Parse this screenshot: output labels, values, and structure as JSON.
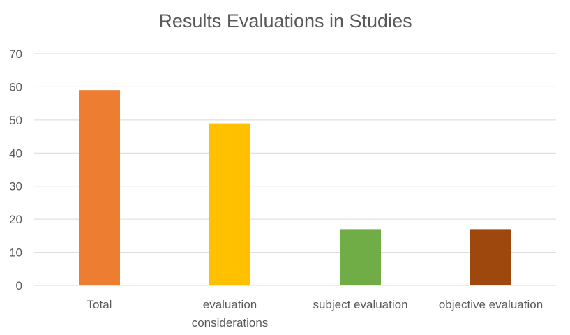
{
  "chart_data": {
    "type": "bar",
    "title": "Results Evaluations in Studies",
    "xlabel": "",
    "ylabel": "",
    "ylim": [
      0,
      70
    ],
    "yticks": [
      0,
      10,
      20,
      30,
      40,
      50,
      60,
      70
    ],
    "grid": true,
    "legend": "none",
    "categories": [
      "Total",
      "evaluation considerations",
      "subject evaluation",
      "objective evaluation"
    ],
    "category_label_lines": [
      [
        "Total"
      ],
      [
        "evaluation",
        "considerations"
      ],
      [
        "subject evaluation"
      ],
      [
        "objective evaluation"
      ]
    ],
    "values": [
      59,
      49,
      17,
      17
    ],
    "colors": [
      "#ED7D31",
      "#FFC000",
      "#70AD47",
      "#9E480E"
    ],
    "gridline_color": "#D9D9D9",
    "axis_color": "#D9D9D9"
  }
}
